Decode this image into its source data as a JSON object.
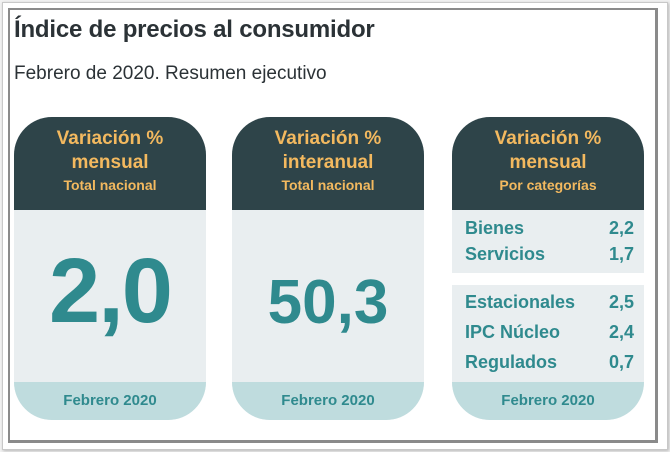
{
  "header": {
    "title": "Índice de precios al consumidor",
    "subtitle": "Febrero de 2020. Resumen ejecutivo"
  },
  "colors": {
    "card_header_bg": "#2e4449",
    "card_header_text": "#f3b95f",
    "card_body_bg": "#e9eef0",
    "card_footer_bg": "#bfdcde",
    "accent_text": "#2f8a8e"
  },
  "cards": [
    {
      "line1": "Variación %",
      "line2": "mensual",
      "line3": "Total nacional",
      "value": "2,0",
      "footer": "Febrero 2020"
    },
    {
      "line1": "Variación %",
      "line2": "interanual",
      "line3": "Total nacional",
      "value": "50,3",
      "footer": "Febrero 2020"
    },
    {
      "line1": "Variación %",
      "line2": "mensual",
      "line3": "Por categorías",
      "groups": [
        [
          {
            "label": "Bienes",
            "value": "2,2"
          },
          {
            "label": "Servicios",
            "value": "1,7"
          }
        ],
        [
          {
            "label": "Estacionales",
            "value": "2,5"
          },
          {
            "label": "IPC Núcleo",
            "value": "2,4"
          },
          {
            "label": "Regulados",
            "value": "0,7"
          }
        ]
      ],
      "footer": "Febrero 2020"
    }
  ]
}
